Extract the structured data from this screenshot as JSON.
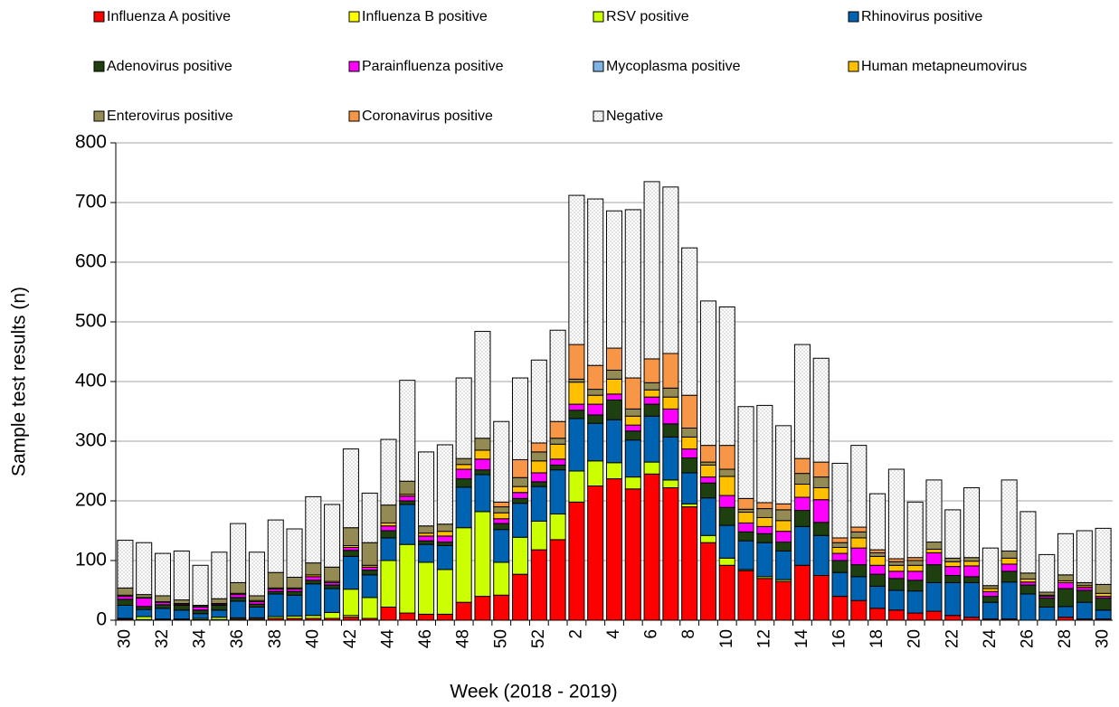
{
  "chart_data": {
    "type": "stacked_bar",
    "x_label": "Week (2018 - 2019)",
    "y_label": "Sample test results (n)",
    "categories": [
      "30",
      null,
      "32",
      null,
      "34",
      null,
      "36",
      null,
      "38",
      null,
      "40",
      null,
      "42",
      null,
      "44",
      null,
      "46",
      null,
      "48",
      null,
      "50",
      null,
      "52",
      null,
      "2",
      null,
      "4",
      null,
      "6",
      null,
      "8",
      null,
      "10",
      null,
      "12",
      null,
      "14",
      null,
      "16",
      null,
      "18",
      null,
      "20",
      null,
      "22",
      null,
      "24",
      null,
      "26",
      null,
      "28",
      null,
      "30"
    ],
    "ylim": [
      0,
      800
    ],
    "yticks": [
      0,
      100,
      200,
      300,
      400,
      500,
      600,
      700,
      800
    ],
    "grid": true,
    "series": [
      {
        "name": "Influenza A positive",
        "color": "#ff0000",
        "values": [
          2,
          1,
          1,
          1,
          1,
          1,
          2,
          2,
          3,
          3,
          3,
          3,
          5,
          3,
          22,
          12,
          10,
          10,
          30,
          40,
          42,
          77,
          118,
          135,
          198,
          225,
          237,
          220,
          245,
          222,
          190,
          130,
          92,
          83,
          70,
          65,
          92,
          75,
          40,
          33,
          20,
          17,
          12,
          15,
          8,
          5,
          2,
          2,
          0,
          0,
          5,
          2,
          2
        ]
      },
      {
        "name": "Influenza B positive",
        "color": "#ffff00",
        "values": [
          0,
          0,
          0,
          0,
          0,
          0,
          0,
          0,
          0,
          0,
          0,
          0,
          3,
          0,
          0,
          0,
          0,
          0,
          0,
          0,
          0,
          0,
          0,
          0,
          0,
          0,
          0,
          0,
          0,
          0,
          0,
          0,
          0,
          0,
          0,
          0,
          0,
          0,
          0,
          0,
          0,
          0,
          0,
          0,
          0,
          0,
          0,
          0,
          0,
          0,
          0,
          0,
          0
        ]
      },
      {
        "name": "RSV positive",
        "color": "#ccff00",
        "values": [
          1,
          5,
          1,
          1,
          2,
          4,
          2,
          2,
          3,
          4,
          5,
          10,
          44,
          35,
          78,
          115,
          87,
          75,
          125,
          142,
          55,
          62,
          48,
          43,
          52,
          42,
          27,
          20,
          20,
          13,
          5,
          12,
          12,
          2,
          3,
          3,
          0,
          0,
          0,
          0,
          0,
          0,
          0,
          0,
          0,
          0,
          0,
          0,
          0,
          0,
          0,
          0,
          0
        ]
      },
      {
        "name": "Rhinovirus positive",
        "color": "#0063b1",
        "values": [
          22,
          12,
          18,
          15,
          8,
          12,
          28,
          18,
          38,
          35,
          53,
          40,
          55,
          38,
          38,
          67,
          30,
          40,
          68,
          62,
          55,
          57,
          58,
          74,
          88,
          63,
          72,
          62,
          77,
          72,
          52,
          63,
          55,
          48,
          57,
          48,
          65,
          67,
          40,
          40,
          37,
          33,
          37,
          48,
          55,
          58,
          28,
          62,
          44,
          22,
          18,
          28,
          15
        ]
      },
      {
        "name": "Adenovirus positive",
        "color": "#1e3f10",
        "values": [
          10,
          5,
          6,
          8,
          6,
          8,
          6,
          5,
          4,
          6,
          6,
          6,
          10,
          8,
          12,
          6,
          6,
          6,
          14,
          8,
          10,
          8,
          8,
          8,
          14,
          14,
          33,
          15,
          20,
          22,
          25,
          25,
          30,
          15,
          15,
          15,
          27,
          22,
          20,
          20,
          20,
          20,
          18,
          30,
          12,
          10,
          10,
          18,
          15,
          15,
          30,
          20,
          20
        ]
      },
      {
        "name": "Parainfluenza positive",
        "color": "#ff00ff",
        "values": [
          5,
          14,
          4,
          2,
          5,
          2,
          5,
          4,
          4,
          4,
          6,
          4,
          5,
          5,
          8,
          8,
          8,
          10,
          16,
          18,
          8,
          10,
          15,
          10,
          10,
          18,
          10,
          10,
          12,
          25,
          15,
          10,
          20,
          15,
          12,
          18,
          22,
          38,
          12,
          28,
          15,
          12,
          15,
          20,
          15,
          18,
          8,
          12,
          5,
          3,
          10,
          5,
          3
        ]
      },
      {
        "name": "Mycoplasma positive",
        "color": "#7fb2e5",
        "values": [
          0,
          0,
          0,
          0,
          0,
          0,
          0,
          0,
          0,
          0,
          0,
          0,
          0,
          0,
          0,
          0,
          0,
          0,
          0,
          0,
          0,
          0,
          0,
          0,
          0,
          0,
          0,
          0,
          0,
          0,
          0,
          0,
          0,
          0,
          0,
          0,
          0,
          0,
          0,
          0,
          0,
          0,
          0,
          0,
          0,
          0,
          0,
          0,
          0,
          0,
          0,
          0,
          0
        ]
      },
      {
        "name": "Human metapneumovirus",
        "color": "#ffc000",
        "values": [
          2,
          1,
          1,
          1,
          1,
          1,
          2,
          2,
          2,
          2,
          3,
          2,
          3,
          3,
          5,
          3,
          5,
          8,
          8,
          15,
          10,
          10,
          20,
          25,
          37,
          15,
          25,
          15,
          12,
          20,
          20,
          20,
          32,
          18,
          15,
          18,
          22,
          20,
          10,
          17,
          15,
          10,
          10,
          6,
          8,
          8,
          5,
          10,
          5,
          2,
          3,
          3,
          5
        ]
      },
      {
        "name": "Enterovirus positive",
        "color": "#948a54",
        "values": [
          12,
          5,
          10,
          6,
          2,
          8,
          18,
          8,
          26,
          18,
          20,
          24,
          30,
          38,
          30,
          22,
          12,
          12,
          10,
          20,
          10,
          15,
          15,
          10,
          5,
          10,
          15,
          12,
          12,
          15,
          15,
          5,
          12,
          5,
          15,
          18,
          18,
          18,
          8,
          10,
          6,
          6,
          8,
          12,
          6,
          6,
          5,
          12,
          10,
          5,
          10,
          5,
          15
        ]
      },
      {
        "name": "Coronavirus positive",
        "color": "#f79646",
        "values": [
          0,
          0,
          0,
          0,
          0,
          0,
          0,
          0,
          0,
          0,
          0,
          0,
          0,
          0,
          0,
          0,
          0,
          0,
          0,
          0,
          8,
          30,
          15,
          28,
          58,
          40,
          37,
          52,
          40,
          58,
          55,
          28,
          40,
          18,
          10,
          10,
          25,
          25,
          8,
          8,
          5,
          5,
          5,
          0,
          0,
          0,
          0,
          0,
          0,
          0,
          0,
          0,
          0
        ]
      },
      {
        "name": "Negative",
        "color": "#ffffff",
        "values": [
          80,
          87,
          71,
          82,
          67,
          78,
          99,
          73,
          88,
          81,
          111,
          105,
          132,
          83,
          110,
          169,
          124,
          133,
          135,
          179,
          135,
          137,
          139,
          153,
          250,
          279,
          230,
          282,
          297,
          279,
          247,
          242,
          232,
          154,
          163,
          131,
          191,
          174,
          125,
          137,
          94,
          150,
          93,
          104,
          81,
          117,
          63,
          119,
          103,
          63,
          69,
          87,
          94
        ]
      }
    ]
  }
}
